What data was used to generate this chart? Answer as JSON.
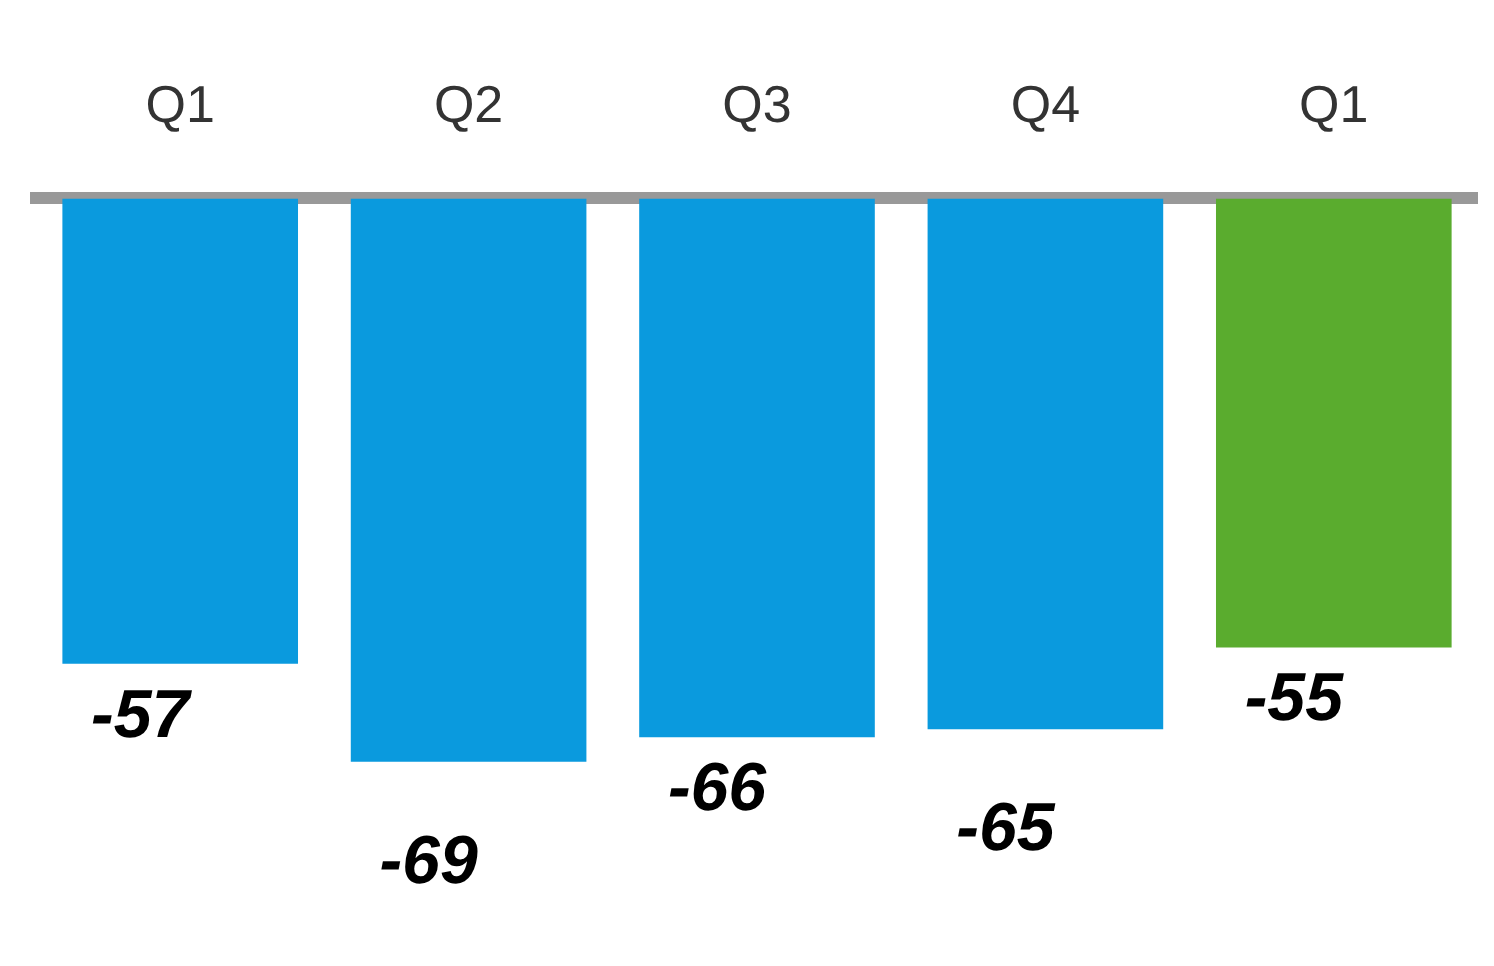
{
  "chart_data": {
    "type": "bar",
    "categories": [
      "Q1",
      "Q2",
      "Q3",
      "Q4",
      "Q1"
    ],
    "values": [
      -57,
      -69,
      -66,
      -65,
      -55
    ],
    "colors": [
      "#0a9ade",
      "#0a9ade",
      "#0a9ade",
      "#0a9ade",
      "#5aac2e"
    ],
    "data_labels": true,
    "grid": false
  }
}
